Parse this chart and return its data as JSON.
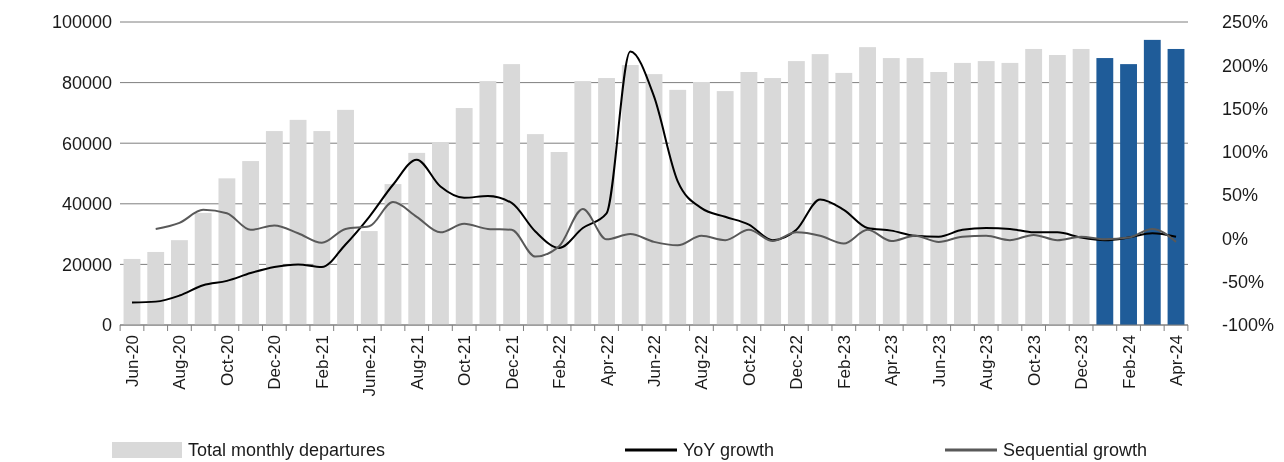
{
  "chart_data": {
    "type": "bar",
    "categories": [
      "Jun-20",
      null,
      "Aug-20",
      null,
      "Oct-20",
      null,
      "Dec-20",
      null,
      "Feb-21",
      null,
      "June-21",
      null,
      "Aug-21",
      null,
      "Oct-21",
      null,
      "Dec-21",
      null,
      "Feb-22",
      null,
      "Apr-22",
      null,
      "Jun-22",
      null,
      "Aug-22",
      null,
      "Oct-22",
      null,
      "Dec-22",
      null,
      "Feb-23",
      null,
      "Apr-23",
      null,
      "Jun-23",
      null,
      "Aug-23",
      null,
      "Oct-23",
      null,
      "Dec-23",
      null,
      "Feb-24",
      null,
      "Apr-24"
    ],
    "series": [
      {
        "name": "Total monthly departures",
        "color": "#d9d9d9",
        "colors": [
          "#d9d9d9",
          "#d9d9d9",
          "#d9d9d9",
          "#d9d9d9",
          "#d9d9d9",
          "#d9d9d9",
          "#d9d9d9",
          "#d9d9d9",
          "#d9d9d9",
          "#d9d9d9",
          "#d9d9d9",
          "#d9d9d9",
          "#d9d9d9",
          "#d9d9d9",
          "#d9d9d9",
          "#d9d9d9",
          "#d9d9d9",
          "#d9d9d9",
          "#d9d9d9",
          "#d9d9d9",
          "#d9d9d9",
          "#d9d9d9",
          "#d9d9d9",
          "#d9d9d9",
          "#d9d9d9",
          "#d9d9d9",
          "#d9d9d9",
          "#d9d9d9",
          "#d9d9d9",
          "#d9d9d9",
          "#d9d9d9",
          "#d9d9d9",
          "#d9d9d9",
          "#d9d9d9",
          "#d9d9d9",
          "#d9d9d9",
          "#d9d9d9",
          "#d9d9d9",
          "#d9d9d9",
          "#d9d9d9",
          "#d9d9d9",
          "#1f5c99",
          "#1f5c99",
          "#1f5c99",
          "#1f5c99"
        ],
        "values": [
          21800,
          24100,
          28000,
          37000,
          48400,
          54100,
          64000,
          67700,
          64000,
          71000,
          31000,
          46500,
          56800,
          60400,
          71600,
          80500,
          86100,
          63000,
          57100,
          80500,
          81500,
          85800,
          82800,
          77600,
          80200,
          77200,
          83500,
          81500,
          87100,
          89400,
          83200,
          91700,
          88100,
          88100,
          83500,
          86500,
          87100,
          86500,
          91100,
          89100,
          91100,
          88100,
          86100,
          94100,
          91100
        ]
      },
      {
        "name": "YoY growth",
        "type": "line",
        "axis": "y2",
        "color": "#000000",
        "values": [
          -74,
          -73,
          -66,
          -54,
          -49,
          -40,
          -33,
          -30,
          -33,
          -7,
          25,
          62,
          91,
          60,
          47,
          49,
          41,
          8,
          -11,
          12,
          29,
          216,
          164,
          66,
          35,
          25,
          16,
          -2,
          10,
          45,
          33,
          12,
          9,
          3,
          2,
          10,
          12,
          11,
          7,
          7,
          1,
          -2,
          1,
          6,
          2
        ]
      },
      {
        "name": "Sequential growth",
        "type": "line",
        "axis": "y2",
        "color": "#595959",
        "values": [
          null,
          11,
          18,
          33,
          29,
          10,
          15,
          6,
          -5,
          11,
          14,
          42,
          25,
          7,
          17,
          11,
          10,
          -21,
          -9,
          34,
          -1,
          5,
          -4,
          -8,
          3,
          -2,
          10,
          -3,
          7,
          3,
          -6,
          10,
          -3,
          3,
          -4,
          2,
          3,
          -2,
          4,
          -2,
          2,
          -1,
          1,
          11,
          -4
        ]
      }
    ],
    "ylim": [
      0,
      100000
    ],
    "yticks": [
      0,
      20000,
      40000,
      60000,
      80000,
      100000
    ],
    "y2lim": [
      -100,
      250
    ],
    "y2ticks": [
      {
        "value": -100,
        "label": "-100%"
      },
      {
        "value": -50,
        "label": "-50%"
      },
      {
        "value": 0,
        "label": "0%"
      },
      {
        "value": 50,
        "label": "50%"
      },
      {
        "value": 100,
        "label": "100%"
      },
      {
        "value": 150,
        "label": "150%"
      },
      {
        "value": 200,
        "label": "200%"
      },
      {
        "value": 250,
        "label": "250%"
      }
    ],
    "grid": "y",
    "legend": "bottom"
  }
}
